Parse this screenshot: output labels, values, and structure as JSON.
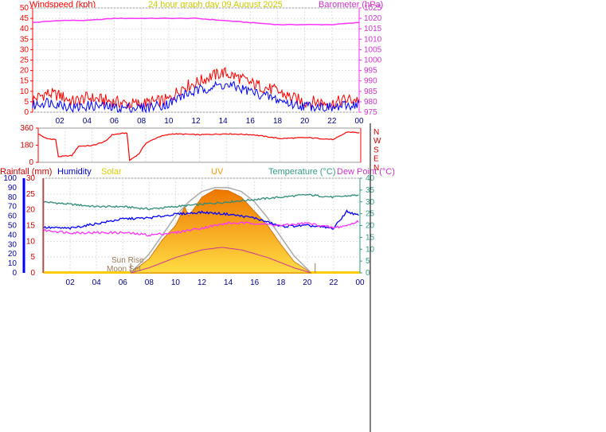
{
  "header": {
    "windspeed_label": "Windspeed (kph)",
    "title": "24 hour graph day  09 August  2025",
    "barometer_label": "Barometer (hPa)"
  },
  "lower_header": {
    "rainfall": "Rainfall (mm)",
    "humidity": "Humidity",
    "solar": "Solar",
    "uv": "UV",
    "temperature": "Temperature (°C)",
    "dew_point": "Dew Point (°C)"
  },
  "annotations": {
    "sun_rise": "Sun Rise",
    "moon_set": "Moon Set"
  },
  "colors": {
    "wind_gust": "#ff0000",
    "wind_avg": "#0000ff",
    "barometer": "#ff33ff",
    "direction": "#ff0000",
    "humidity": "#0000ff",
    "temperature": "#2e8b7a",
    "dew_point": "#ff33ff",
    "solar_fill": "#ff9900",
    "uv": "#cc3399",
    "solar_max": "#aaaaaa",
    "title": "#cccc00",
    "rain_axis": "#0000ff",
    "ground": "#ffcc00"
  },
  "chart_data": [
    {
      "type": "line",
      "name": "wind_barometer",
      "x_ticks": [
        "02",
        "04",
        "06",
        "08",
        "10",
        "12",
        "14",
        "16",
        "18",
        "20",
        "22",
        "00"
      ],
      "y_left_ticks": [
        "0",
        "5",
        "10",
        "15",
        "20",
        "25",
        "30",
        "35",
        "40",
        "45",
        "50"
      ],
      "y_left_lim": [
        0,
        50
      ],
      "y_right_ticks": [
        "975",
        "980",
        "985",
        "990",
        "995",
        "1000",
        "1005",
        "1010",
        "1015",
        "1020",
        "1025"
      ],
      "y_right_lim": [
        975,
        1025
      ],
      "x_lim": [
        0,
        24
      ],
      "series": [
        {
          "role": "gust",
          "hours": [
            0,
            1,
            2,
            3,
            4,
            5,
            6,
            7,
            8,
            9,
            10,
            11,
            12,
            13,
            14,
            15,
            16,
            17,
            18,
            19,
            20,
            21,
            22,
            23,
            24
          ],
          "values": [
            6,
            9,
            8,
            5,
            7,
            6,
            5,
            4,
            4,
            5,
            6,
            12,
            14,
            17,
            19,
            17,
            14,
            12,
            10,
            7,
            5,
            5,
            4,
            6,
            6
          ]
        },
        {
          "role": "average",
          "hours": [
            0,
            1,
            2,
            3,
            4,
            5,
            6,
            7,
            8,
            9,
            10,
            11,
            12,
            13,
            14,
            15,
            16,
            17,
            18,
            19,
            20,
            21,
            22,
            23,
            24
          ],
          "values": [
            3,
            5,
            4,
            2,
            3,
            3,
            2,
            2,
            2,
            3,
            4,
            8,
            10,
            12,
            13,
            12,
            10,
            8,
            6,
            4,
            3,
            3,
            2,
            3,
            4
          ]
        },
        {
          "role": "barometer",
          "hours": [
            0,
            2,
            4,
            6,
            8,
            10,
            12,
            14,
            16,
            18,
            20,
            22,
            24
          ],
          "values": [
            1018,
            1019,
            1019,
            1020,
            1020,
            1020,
            1020,
            1019,
            1018,
            1017,
            1017,
            1017,
            1018
          ]
        }
      ]
    },
    {
      "type": "line",
      "name": "wind_direction",
      "y_ticks": [
        "360",
        "180",
        "0"
      ],
      "y_lim": [
        0,
        360
      ],
      "compass_labels": [
        "N",
        "W",
        "S",
        "E",
        "N"
      ],
      "x_lim": [
        0,
        24
      ],
      "series": [
        {
          "role": "direction",
          "hours": [
            0,
            0.6,
            1.3,
            1.5,
            2.5,
            2.7,
            3,
            4,
            5,
            5.5,
            6.6,
            6.8,
            7.5,
            8,
            9,
            10,
            12,
            14,
            16,
            18,
            20,
            22,
            23,
            24
          ],
          "values": [
            300,
            250,
            240,
            60,
            70,
            110,
            170,
            175,
            220,
            290,
            310,
            20,
            90,
            200,
            270,
            300,
            290,
            300,
            290,
            250,
            260,
            240,
            320,
            310
          ]
        }
      ]
    },
    {
      "type": "area",
      "name": "temp_humidity_solar",
      "x_ticks": [
        "02",
        "04",
        "06",
        "08",
        "10",
        "12",
        "14",
        "16",
        "18",
        "20",
        "22",
        "00"
      ],
      "x_lim": [
        0,
        24
      ],
      "y_rain_ticks": [
        "0",
        "5",
        "10",
        "15",
        "20",
        "25",
        "30"
      ],
      "y_rain_lim": [
        0,
        30
      ],
      "y_percent_ticks": [
        "0",
        "10",
        "20",
        "30",
        "40",
        "50",
        "60",
        "70",
        "80",
        "90",
        "100"
      ],
      "y_percent_lim": [
        0,
        100
      ],
      "y_temp_ticks": [
        "0",
        "5",
        "10",
        "15",
        "20",
        "25",
        "30",
        "35",
        "40"
      ],
      "y_temp_lim": [
        0,
        40
      ],
      "sun_rise_hour": 6.6,
      "moon_set_hour": 20.6,
      "series": [
        {
          "role": "humidity",
          "hours": [
            0,
            2,
            4,
            6,
            8,
            10,
            12,
            14,
            16,
            18,
            20,
            22,
            23,
            24
          ],
          "values": [
            48,
            47,
            52,
            57,
            58,
            62,
            64,
            62,
            58,
            49,
            50,
            47,
            65,
            60
          ]
        },
        {
          "role": "temperature",
          "hours": [
            0,
            2,
            4,
            6,
            8,
            10,
            12,
            14,
            16,
            18,
            20,
            22,
            24
          ],
          "values": [
            30,
            29,
            28,
            28,
            27,
            28,
            29,
            30,
            31,
            32,
            33,
            32,
            33
          ]
        },
        {
          "role": "dew_point",
          "hours": [
            0,
            2,
            4,
            6,
            8,
            10,
            12,
            14,
            16,
            18,
            20,
            22,
            23,
            24
          ],
          "values": [
            18,
            17,
            17,
            17,
            16,
            17,
            19,
            21,
            21,
            20,
            21,
            19,
            20,
            22
          ]
        },
        {
          "role": "solar",
          "hours": [
            6.6,
            8,
            9,
            10,
            10.7,
            11,
            12,
            13,
            14,
            15,
            16,
            17,
            18,
            19,
            20.3
          ],
          "values": [
            0,
            15,
            35,
            50,
            70,
            60,
            80,
            88,
            87,
            80,
            65,
            50,
            30,
            12,
            0
          ]
        },
        {
          "role": "solar_max",
          "hours": [
            6.6,
            8,
            9,
            10,
            11,
            12,
            13,
            14,
            15,
            16,
            17,
            18,
            19,
            20.3
          ],
          "values": [
            0,
            20,
            40,
            60,
            75,
            86,
            90,
            90,
            86,
            75,
            58,
            38,
            18,
            0
          ]
        },
        {
          "role": "uv",
          "hours": [
            6.6,
            8,
            10,
            12,
            13.5,
            15,
            17,
            19,
            20.3
          ],
          "values": [
            0,
            2,
            6,
            9,
            10,
            9,
            6,
            2,
            0
          ]
        }
      ]
    }
  ]
}
